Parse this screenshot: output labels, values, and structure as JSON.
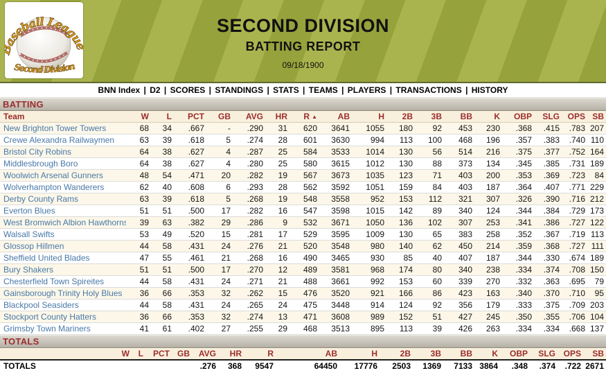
{
  "logo": {
    "title_top": "Baseball League",
    "title_bottom": "Second Division"
  },
  "header": {
    "title": "SECOND DIVISION",
    "subtitle": "BATTING REPORT",
    "date": "09/18/1900"
  },
  "nav": {
    "separator": "|",
    "items": [
      "BNN Index",
      "D2",
      "SCORES",
      "STANDINGS",
      "STATS",
      "TEAMS",
      "PLAYERS",
      "TRANSACTIONS",
      "HISTORY"
    ]
  },
  "batting": {
    "section_title": "BATTING",
    "columns": [
      "Team",
      "W",
      "L",
      "PCT",
      "GB",
      "AVG",
      "HR",
      "R",
      "AB",
      "H",
      "2B",
      "3B",
      "BB",
      "K",
      "OBP",
      "SLG",
      "OPS",
      "SB"
    ],
    "sorted_column": "R",
    "sort_icon": "▲",
    "rows": [
      {
        "team": "New Brighton Tower Towers",
        "w": "68",
        "l": "34",
        "pct": ".667",
        "gb": "-",
        "avg": ".290",
        "hr": "31",
        "r": "620",
        "ab": "3641",
        "h": "1055",
        "2b": "180",
        "3b": "92",
        "bb": "453",
        "k": "230",
        "obp": ".368",
        "slg": ".415",
        "ops": ".783",
        "sb": "207"
      },
      {
        "team": "Crewe Alexandra Railwaymen",
        "w": "63",
        "l": "39",
        "pct": ".618",
        "gb": "5",
        "avg": ".274",
        "hr": "28",
        "r": "601",
        "ab": "3630",
        "h": "994",
        "2b": "113",
        "3b": "100",
        "bb": "468",
        "k": "196",
        "obp": ".357",
        "slg": ".383",
        "ops": ".740",
        "sb": "110"
      },
      {
        "team": "Bristol City Robins",
        "w": "64",
        "l": "38",
        "pct": ".627",
        "gb": "4",
        "avg": ".287",
        "hr": "25",
        "r": "584",
        "ab": "3533",
        "h": "1014",
        "2b": "130",
        "3b": "56",
        "bb": "514",
        "k": "216",
        "obp": ".375",
        "slg": ".377",
        "ops": ".752",
        "sb": "164"
      },
      {
        "team": "Middlesbrough Boro",
        "w": "64",
        "l": "38",
        "pct": ".627",
        "gb": "4",
        "avg": ".280",
        "hr": "25",
        "r": "580",
        "ab": "3615",
        "h": "1012",
        "2b": "130",
        "3b": "88",
        "bb": "373",
        "k": "134",
        "obp": ".345",
        "slg": ".385",
        "ops": ".731",
        "sb": "189"
      },
      {
        "team": "Woolwich Arsenal Gunners",
        "w": "48",
        "l": "54",
        "pct": ".471",
        "gb": "20",
        "avg": ".282",
        "hr": "19",
        "r": "567",
        "ab": "3673",
        "h": "1035",
        "2b": "123",
        "3b": "71",
        "bb": "403",
        "k": "200",
        "obp": ".353",
        "slg": ".369",
        "ops": ".723",
        "sb": "84"
      },
      {
        "team": "Wolverhampton Wanderers",
        "w": "62",
        "l": "40",
        "pct": ".608",
        "gb": "6",
        "avg": ".293",
        "hr": "28",
        "r": "562",
        "ab": "3592",
        "h": "1051",
        "2b": "159",
        "3b": "84",
        "bb": "403",
        "k": "187",
        "obp": ".364",
        "slg": ".407",
        "ops": ".771",
        "sb": "229"
      },
      {
        "team": "Derby County Rams",
        "w": "63",
        "l": "39",
        "pct": ".618",
        "gb": "5",
        "avg": ".268",
        "hr": "19",
        "r": "548",
        "ab": "3558",
        "h": "952",
        "2b": "153",
        "3b": "112",
        "bb": "321",
        "k": "307",
        "obp": ".326",
        "slg": ".390",
        "ops": ".716",
        "sb": "212"
      },
      {
        "team": "Everton Blues",
        "w": "51",
        "l": "51",
        "pct": ".500",
        "gb": "17",
        "avg": ".282",
        "hr": "16",
        "r": "547",
        "ab": "3598",
        "h": "1015",
        "2b": "142",
        "3b": "89",
        "bb": "340",
        "k": "124",
        "obp": ".344",
        "slg": ".384",
        "ops": ".729",
        "sb": "173"
      },
      {
        "team": "West Bromwich Albion Hawthorns",
        "w": "39",
        "l": "63",
        "pct": ".382",
        "gb": "29",
        "avg": ".286",
        "hr": "9",
        "r": "532",
        "ab": "3671",
        "h": "1050",
        "2b": "136",
        "3b": "102",
        "bb": "307",
        "k": "253",
        "obp": ".341",
        "slg": ".386",
        "ops": ".727",
        "sb": "122"
      },
      {
        "team": "Walsall Swifts",
        "w": "53",
        "l": "49",
        "pct": ".520",
        "gb": "15",
        "avg": ".281",
        "hr": "17",
        "r": "529",
        "ab": "3595",
        "h": "1009",
        "2b": "130",
        "3b": "65",
        "bb": "383",
        "k": "258",
        "obp": ".352",
        "slg": ".367",
        "ops": ".719",
        "sb": "113"
      },
      {
        "team": "Glossop Hillmen",
        "w": "44",
        "l": "58",
        "pct": ".431",
        "gb": "24",
        "avg": ".276",
        "hr": "21",
        "r": "520",
        "ab": "3548",
        "h": "980",
        "2b": "140",
        "3b": "62",
        "bb": "450",
        "k": "214",
        "obp": ".359",
        "slg": ".368",
        "ops": ".727",
        "sb": "111"
      },
      {
        "team": "Sheffield United Blades",
        "w": "47",
        "l": "55",
        "pct": ".461",
        "gb": "21",
        "avg": ".268",
        "hr": "16",
        "r": "490",
        "ab": "3465",
        "h": "930",
        "2b": "85",
        "3b": "40",
        "bb": "407",
        "k": "187",
        "obp": ".344",
        "slg": ".330",
        "ops": ".674",
        "sb": "189"
      },
      {
        "team": "Bury Shakers",
        "w": "51",
        "l": "51",
        "pct": ".500",
        "gb": "17",
        "avg": ".270",
        "hr": "12",
        "r": "489",
        "ab": "3581",
        "h": "968",
        "2b": "174",
        "3b": "80",
        "bb": "340",
        "k": "238",
        "obp": ".334",
        "slg": ".374",
        "ops": ".708",
        "sb": "150"
      },
      {
        "team": "Chesterfield Town Spireites",
        "w": "44",
        "l": "58",
        "pct": ".431",
        "gb": "24",
        "avg": ".271",
        "hr": "21",
        "r": "488",
        "ab": "3661",
        "h": "992",
        "2b": "153",
        "3b": "60",
        "bb": "339",
        "k": "270",
        "obp": ".332",
        "slg": ".363",
        "ops": ".695",
        "sb": "79"
      },
      {
        "team": "Gainsborough Trinity Holy Blues",
        "w": "36",
        "l": "66",
        "pct": ".353",
        "gb": "32",
        "avg": ".262",
        "hr": "15",
        "r": "476",
        "ab": "3520",
        "h": "921",
        "2b": "166",
        "3b": "86",
        "bb": "423",
        "k": "163",
        "obp": ".340",
        "slg": ".370",
        "ops": ".710",
        "sb": "95"
      },
      {
        "team": "Blackpool Seasiders",
        "w": "44",
        "l": "58",
        "pct": ".431",
        "gb": "24",
        "avg": ".265",
        "hr": "24",
        "r": "475",
        "ab": "3448",
        "h": "914",
        "2b": "124",
        "3b": "92",
        "bb": "356",
        "k": "179",
        "obp": ".333",
        "slg": ".375",
        "ops": ".709",
        "sb": "203"
      },
      {
        "team": "Stockport County Hatters",
        "w": "36",
        "l": "66",
        "pct": ".353",
        "gb": "32",
        "avg": ".274",
        "hr": "13",
        "r": "471",
        "ab": "3608",
        "h": "989",
        "2b": "152",
        "3b": "51",
        "bb": "427",
        "k": "245",
        "obp": ".350",
        "slg": ".355",
        "ops": ".706",
        "sb": "104"
      },
      {
        "team": "Grimsby Town Mariners",
        "w": "41",
        "l": "61",
        "pct": ".402",
        "gb": "27",
        "avg": ".255",
        "hr": "29",
        "r": "468",
        "ab": "3513",
        "h": "895",
        "2b": "113",
        "3b": "39",
        "bb": "426",
        "k": "263",
        "obp": ".334",
        "slg": ".334",
        "ops": ".668",
        "sb": "137"
      }
    ]
  },
  "totals": {
    "section_title": "TOTALS",
    "columns": [
      "W",
      "L",
      "PCT",
      "GB",
      "AVG",
      "HR",
      "R",
      "AB",
      "H",
      "2B",
      "3B",
      "BB",
      "K",
      "OBP",
      "SLG",
      "OPS",
      "SB"
    ],
    "row_label": "TOTALS",
    "values": {
      "avg": ".276",
      "hr": "368",
      "r": "9547",
      "ab": "64450",
      "h": "17776",
      "2b": "2503",
      "3b": "1369",
      "bb": "7133",
      "k": "3864",
      "obp": ".348",
      "slg": ".374",
      "ops": ".722",
      "sb": "2671"
    }
  },
  "colors": {
    "maroon": "#9b2d2d",
    "header_cream": "#f8f0dc",
    "team_link_blue": "#4878a8",
    "row_alt_cream": "#fcf7e8",
    "grass_light": "#aab44e",
    "grass_dark": "#96a23b",
    "logo_gold": "#d7991f"
  }
}
